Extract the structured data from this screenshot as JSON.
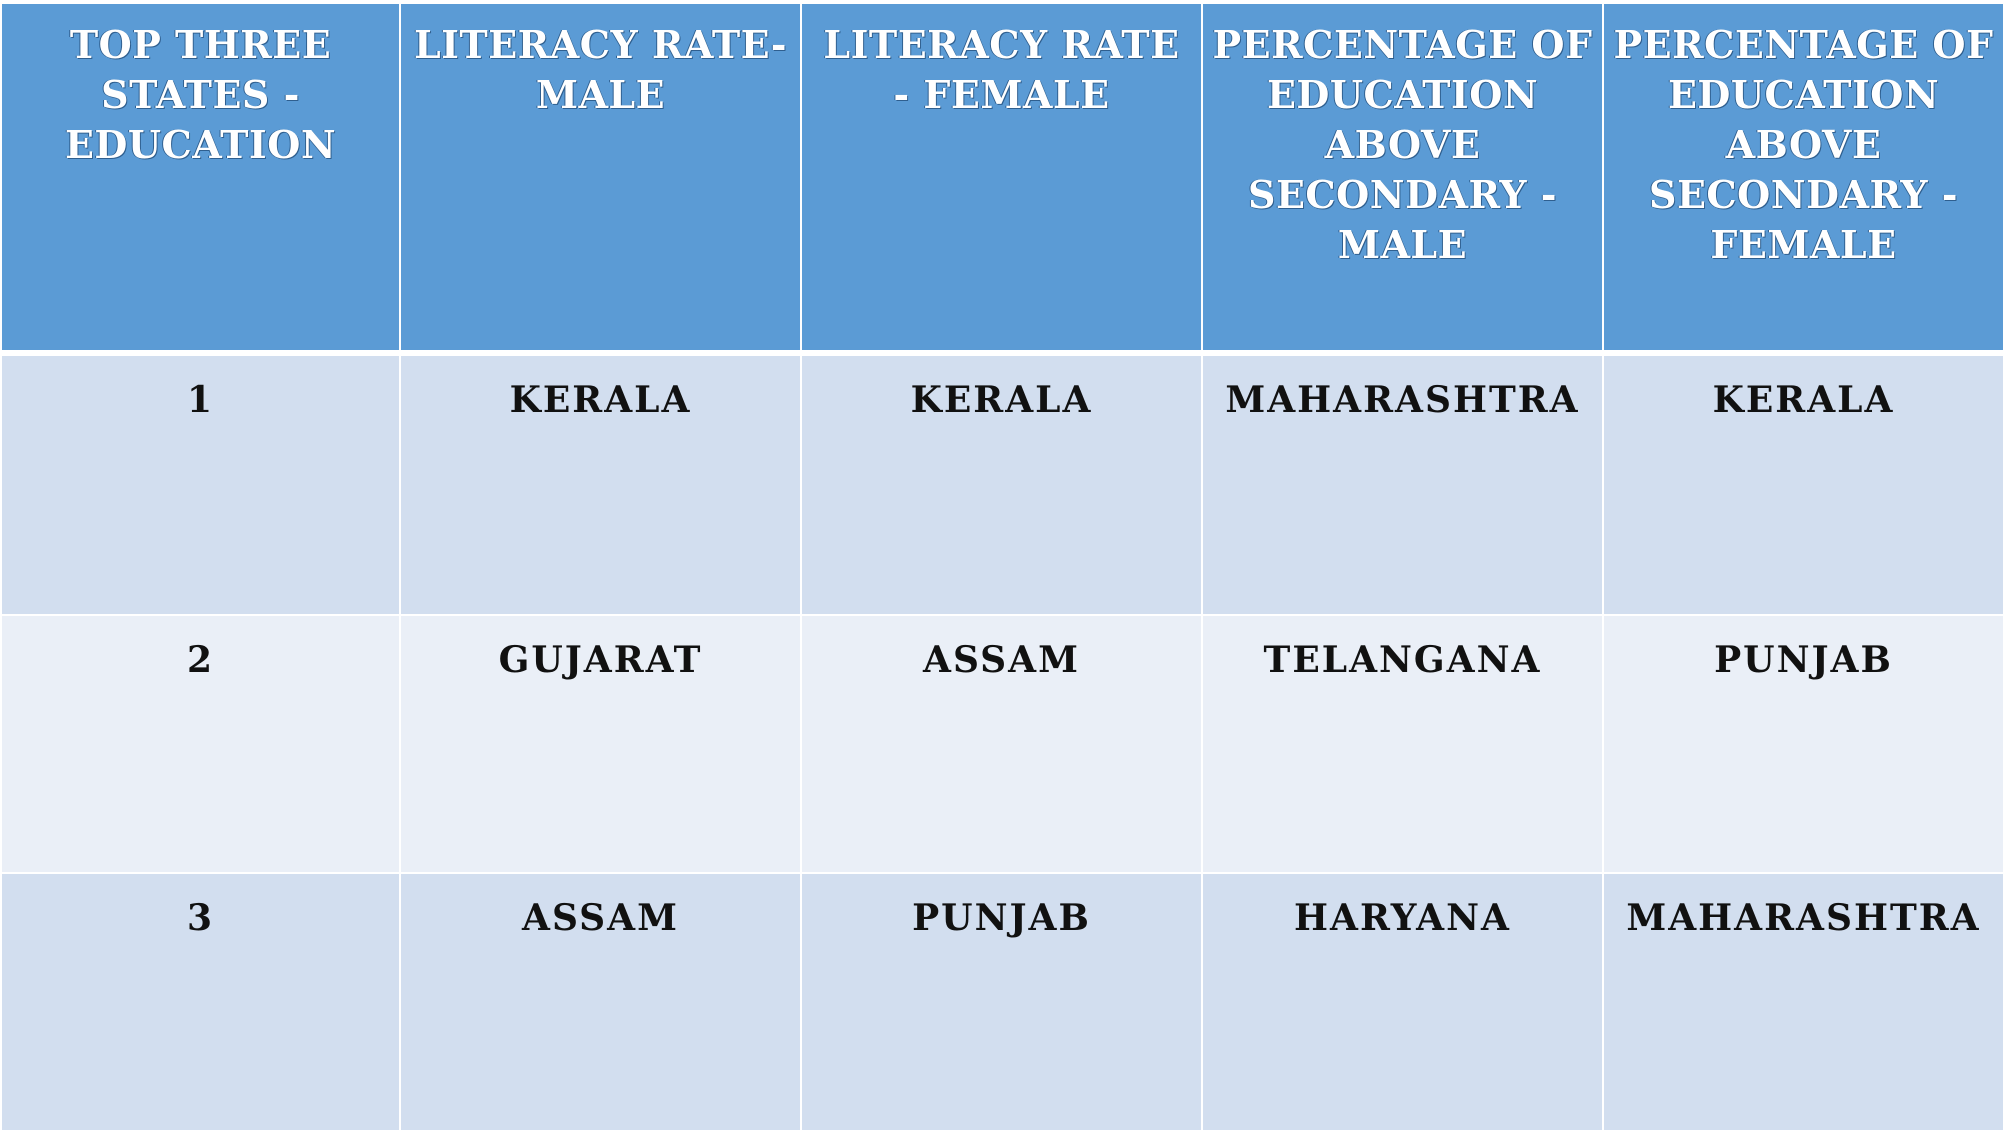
{
  "table": {
    "headers": [
      "TOP THREE STATES  - EDUCATION",
      "LITERACY RATE- MALE",
      "LITERACY RATE - FEMALE",
      "PERCENTAGE OF EDUCATION ABOVE SECONDARY - MALE",
      "PERCENTAGE OF EDUCATION ABOVE SECONDARY - FEMALE"
    ],
    "rows": [
      [
        "1",
        "KERALA",
        "KERALA",
        "MAHARASHTRA",
        "KERALA"
      ],
      [
        "2",
        "GUJARAT",
        "ASSAM",
        "TELANGANA",
        "PUNJAB"
      ],
      [
        "3",
        "ASSAM",
        "PUNJAB",
        "HARYANA",
        "MAHARASHTRA"
      ]
    ]
  },
  "colors": {
    "header_bg": "#5b9bd5",
    "row_odd_bg": "#d2deef",
    "row_even_bg": "#eaeff7",
    "header_text": "#ffffff",
    "body_text": "#111111"
  }
}
